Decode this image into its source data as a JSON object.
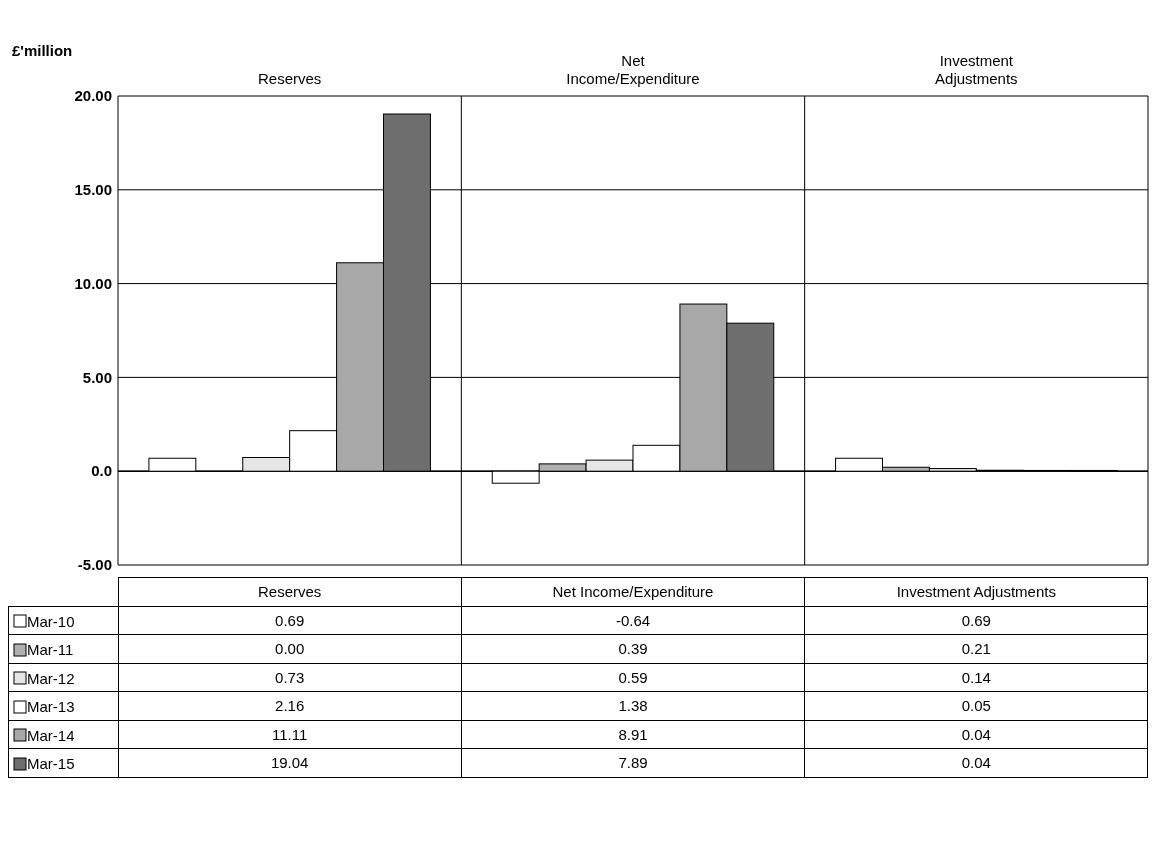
{
  "chart_data": {
    "type": "bar",
    "ylabel": "£'million",
    "categories": [
      "Reserves",
      "Net Income/Expenditure",
      "Investment Adjustments"
    ],
    "series": [
      {
        "name": "Mar-10",
        "color": "#ffffff",
        "values": [
          0.69,
          -0.64,
          0.69
        ],
        "value_labels": [
          "0.69",
          "-0.64",
          "0.69"
        ]
      },
      {
        "name": "Mar-11",
        "color": "#b0b0b0",
        "values": [
          0,
          0.39,
          0.21
        ],
        "value_labels": [
          "0.00",
          "0.39",
          "0.21"
        ]
      },
      {
        "name": "Mar-12",
        "color": "#e6e6e6",
        "values": [
          0.73,
          0.59,
          0.14
        ],
        "value_labels": [
          "0.73",
          "0.59",
          "0.14"
        ]
      },
      {
        "name": "Mar-13",
        "color": "#ffffff",
        "values": [
          2.16,
          1.38,
          0.05
        ],
        "value_labels": [
          "2.16",
          "1.38",
          "0.05"
        ]
      },
      {
        "name": "Mar-14",
        "color": "#a8a8a8",
        "values": [
          11.11,
          8.91,
          0.04
        ],
        "value_labels": [
          "11.11",
          "8.91",
          "0.04"
        ]
      },
      {
        "name": "Mar-15",
        "color": "#6e6e6e",
        "values": [
          19.04,
          7.89,
          0.04
        ],
        "value_labels": [
          "19.04",
          "7.89",
          "0.04"
        ]
      }
    ],
    "ylim": [
      -5,
      20
    ],
    "yticks": [
      {
        "value": -5,
        "label": "-5.00"
      },
      {
        "value": 0,
        "label": "0.0"
      },
      {
        "value": 5,
        "label": "5.00"
      },
      {
        "value": 10,
        "label": "10.00"
      },
      {
        "value": 15,
        "label": "15.00"
      },
      {
        "value": 20,
        "label": "20.00"
      }
    ],
    "grid": "y",
    "legend": "bottom"
  }
}
